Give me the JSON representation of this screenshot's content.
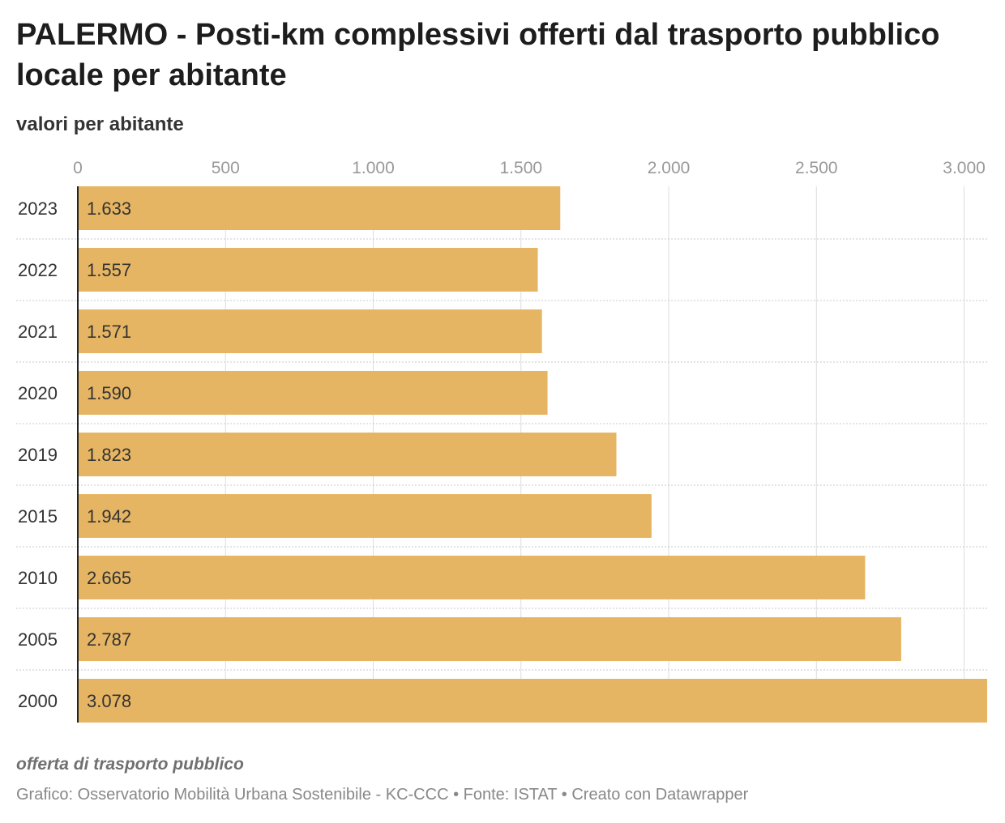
{
  "header": {
    "title": "PALERMO - Posti-km complessivi offerti dal trasporto pubblico locale per abitante",
    "subtitle": "valori per abitante"
  },
  "footer": {
    "notes": "offerta di trasporto pubblico",
    "credits": "Grafico: Osservatorio Mobilità Urbana Sostenibile - KC-CCC • Fonte: ISTAT • Creato con Datawrapper"
  },
  "colors": {
    "bar": "#e6b563",
    "grid": "#dddddd",
    "separator": "#c8c8c8",
    "axis": "#222222"
  },
  "chart_data": {
    "type": "bar",
    "orientation": "horizontal",
    "categories": [
      "2023",
      "2022",
      "2021",
      "2020",
      "2019",
      "2015",
      "2010",
      "2005",
      "2000"
    ],
    "values": [
      1633,
      1557,
      1571,
      1590,
      1823,
      1942,
      2665,
      2787,
      3078
    ],
    "value_labels": [
      "1.633",
      "1.557",
      "1.571",
      "1.590",
      "1.823",
      "1.942",
      "2.665",
      "2.787",
      "3.078"
    ],
    "x_ticks": [
      0,
      500,
      1000,
      1500,
      2000,
      2500,
      3000
    ],
    "x_tick_labels": [
      "0",
      "500",
      "1.000",
      "1.500",
      "2.000",
      "2.500",
      "3.000"
    ],
    "xlim": [
      0,
      3078
    ],
    "grid": true,
    "title": "PALERMO - Posti-km complessivi offerti dal trasporto pubblico locale per abitante",
    "subtitle": "valori per abitante"
  }
}
